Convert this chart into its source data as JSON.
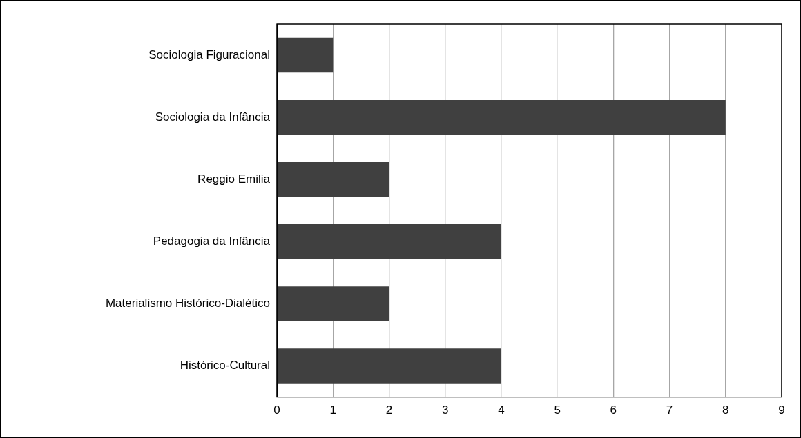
{
  "chart_data": {
    "type": "bar",
    "orientation": "horizontal",
    "categories": [
      "Sociologia Figuracional",
      "Sociologia da Infância",
      "Reggio Emilia",
      "Pedagogia da Infância",
      "Materialismo Histórico-Dialético",
      "Histórico-Cultural"
    ],
    "values": [
      1,
      8,
      2,
      4,
      2,
      4
    ],
    "color": "#404040",
    "xlim": [
      0,
      9
    ],
    "xticks": [
      0,
      1,
      2,
      3,
      4,
      5,
      6,
      7,
      8,
      9
    ],
    "grid": "x"
  }
}
